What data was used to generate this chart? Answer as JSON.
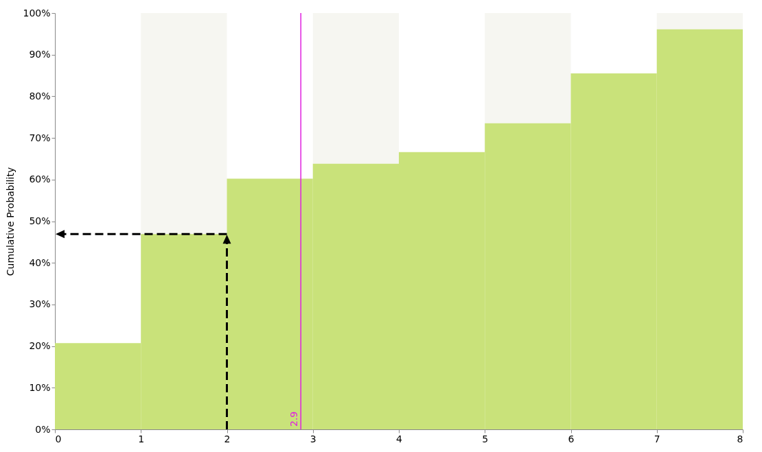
{
  "chart_data": {
    "type": "histogram",
    "ylabel": "Cumulative Probability",
    "bins": [
      0,
      1,
      2,
      3,
      4,
      5,
      6,
      7,
      8
    ],
    "values": [
      20.7,
      46.9,
      60.2,
      63.8,
      66.6,
      73.5,
      85.5,
      96.1
    ],
    "color": "#c9e27a",
    "xlim": [
      0,
      8
    ],
    "xticks": [
      0,
      1,
      2,
      3,
      4,
      5,
      6,
      7,
      8
    ],
    "ylim": [
      0,
      100
    ],
    "yticks": [
      {
        "value": 0,
        "label": "0%"
      },
      {
        "value": 10,
        "label": "10%"
      },
      {
        "value": 20,
        "label": "20%"
      },
      {
        "value": 30,
        "label": "30%"
      },
      {
        "value": 40,
        "label": "40%"
      },
      {
        "value": 50,
        "label": "50%"
      },
      {
        "value": 60,
        "label": "60%"
      },
      {
        "value": 70,
        "label": "70%"
      },
      {
        "value": 80,
        "label": "80%"
      },
      {
        "value": 90,
        "label": "90%"
      },
      {
        "value": 100,
        "label": "100%"
      }
    ],
    "bands": [
      {
        "axis": "x",
        "from": 1,
        "to": 2,
        "color": "#f6f6f1"
      },
      {
        "axis": "x",
        "from": 3,
        "to": 4,
        "color": "#f6f6f1"
      },
      {
        "axis": "x",
        "from": 5,
        "to": 6,
        "color": "#f6f6f1"
      },
      {
        "axis": "x",
        "from": 7,
        "to": 8,
        "color": "#f6f6f1"
      }
    ],
    "ref_lines": [
      {
        "axis": "x",
        "value": 2.86,
        "label": "2.9",
        "color": "#e020e0"
      }
    ]
  }
}
